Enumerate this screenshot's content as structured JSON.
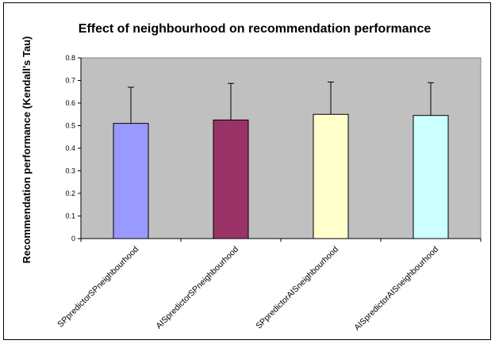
{
  "chart_data": {
    "type": "bar",
    "title": "Effect of neighbourhood on recommendation performance",
    "ylabel": "Recommendation performance (Kendall's Tau)",
    "xlabel": "",
    "ylim": [
      0,
      0.8
    ],
    "yticks": [
      "0",
      "0.1",
      "0.2",
      "0.3",
      "0.4",
      "0.5",
      "0.6",
      "0.7",
      "0.8"
    ],
    "yticks_values": [
      0,
      0.1,
      0.2,
      0.3,
      0.4,
      0.5,
      0.6,
      0.7,
      0.8
    ],
    "categories": [
      "SPpredictorSPneighbourhood",
      "AISpredictorSPneighbourhood",
      "SPpredictorAISneighbourhood",
      "AISpredictorAISneighbourhood"
    ],
    "values": [
      0.51,
      0.525,
      0.55,
      0.545
    ],
    "error_upper": [
      0.16,
      0.162,
      0.143,
      0.145
    ],
    "bar_colors": [
      "#9999ff",
      "#993366",
      "#ffffcc",
      "#ccffff"
    ],
    "plot_background": "#c0c0c0",
    "grid": false,
    "legend": "none"
  }
}
